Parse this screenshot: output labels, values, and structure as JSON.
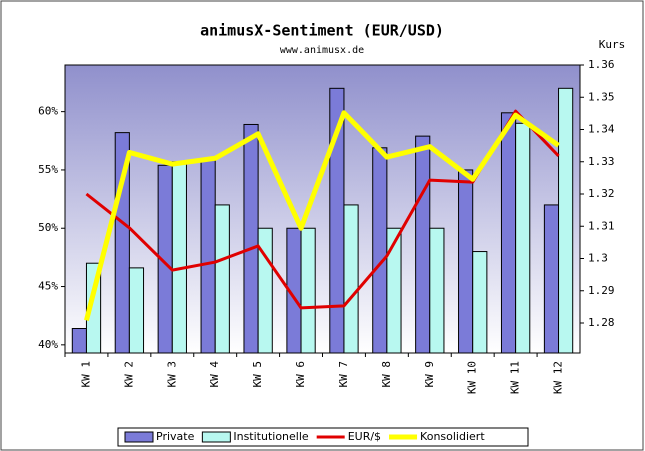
{
  "chart_data": {
    "type": "bar",
    "title": "animusX-Sentiment (EUR/USD)",
    "subtitle": "www.animusx.de",
    "y2_label": "Kurs",
    "categories": [
      "KW 1",
      "KW 2",
      "KW 3",
      "KW 4",
      "KW 5",
      "KW 6",
      "KW 7",
      "KW 8",
      "KW 9",
      "KW 10",
      "KW 11",
      "KW 12"
    ],
    "series": [
      {
        "name": "Private",
        "type": "bar",
        "color": "#7b7bd8",
        "values": [
          41.4,
          58.2,
          55.4,
          55.9,
          58.9,
          50.0,
          62.0,
          56.9,
          57.9,
          55.0,
          59.9,
          52.0
        ]
      },
      {
        "name": "Institutionelle",
        "type": "bar",
        "color": "#b8f8f0",
        "values": [
          47.0,
          46.6,
          55.7,
          52.0,
          50.0,
          50.0,
          52.0,
          50.0,
          50.0,
          48.0,
          59.0,
          62.0
        ]
      },
      {
        "name": "EUR/$",
        "type": "line",
        "axis": "y2",
        "color": "#e00000",
        "values": [
          1.32,
          1.3095,
          1.2964,
          1.2989,
          1.3039,
          1.2847,
          1.2853,
          1.3008,
          1.3243,
          1.3237,
          1.3457,
          1.3318
        ]
      },
      {
        "name": "Konsolidiert",
        "type": "line",
        "color": "#ffff00",
        "values": [
          42.1,
          56.5,
          55.5,
          56.0,
          58.1,
          50.0,
          59.9,
          56.1,
          57.0,
          54.2,
          59.7,
          57.1
        ]
      }
    ],
    "ylim": [
      39.3,
      64
    ],
    "yticks": [
      {
        "value": 40,
        "label": "40%"
      },
      {
        "value": 45,
        "label": "45%"
      },
      {
        "value": 50,
        "label": "50%"
      },
      {
        "value": 55,
        "label": "55%"
      },
      {
        "value": 60,
        "label": "60%"
      }
    ],
    "y2lim": [
      1.2707,
      1.36
    ],
    "y2ticks": [
      1.28,
      1.29,
      1.3,
      1.31,
      1.32,
      1.33,
      1.34,
      1.35,
      1.36
    ],
    "grid": false,
    "legend": "bottom"
  }
}
